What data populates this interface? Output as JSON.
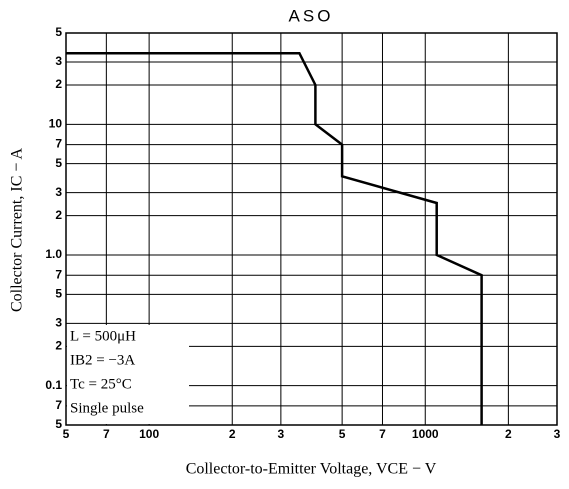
{
  "chart_data": {
    "type": "line",
    "title": "ASO",
    "x_label": "Collector-to-Emitter Voltage, VCE − V",
    "y_label": "Collector Current, IC − A",
    "x": [
      50,
      350,
      400,
      400,
      500,
      500,
      1100,
      1100,
      1600,
      1600
    ],
    "values": [
      35,
      35,
      20,
      10,
      7,
      4,
      2.5,
      1.0,
      0.7,
      0.05
    ],
    "color": "#000000",
    "xlog": true,
    "ylog": true,
    "grid": true,
    "xlim": [
      50,
      3000
    ],
    "xticks": [
      {
        "value": 50,
        "label": "5"
      },
      {
        "value": 70,
        "label": "7"
      },
      100,
      {
        "value": 200,
        "label": "2"
      },
      {
        "value": 300,
        "label": "3"
      },
      {
        "value": 500,
        "label": "5"
      },
      {
        "value": 700,
        "label": "7"
      },
      1000,
      {
        "value": 2000,
        "label": "2"
      },
      {
        "value": 3000,
        "label": "3"
      }
    ],
    "ylim": [
      0.05,
      50
    ],
    "yticks": [
      {
        "value": 50,
        "label": "5"
      },
      {
        "value": 30,
        "label": "3"
      },
      {
        "value": 20,
        "label": "2"
      },
      10,
      7,
      5,
      3,
      2,
      {
        "value": 1,
        "label": "1.0"
      },
      {
        "value": 0.7,
        "label": "7"
      },
      {
        "value": 0.5,
        "label": "5"
      },
      {
        "value": 0.3,
        "label": "3"
      },
      {
        "value": 0.2,
        "label": "2"
      },
      0.1,
      {
        "value": 0.07,
        "label": "7"
      },
      {
        "value": 0.05,
        "label": "5"
      }
    ],
    "annotations": [
      "L = 500μH",
      "IB2 = −3A",
      "Tc = 25°C",
      "Single pulse"
    ]
  }
}
